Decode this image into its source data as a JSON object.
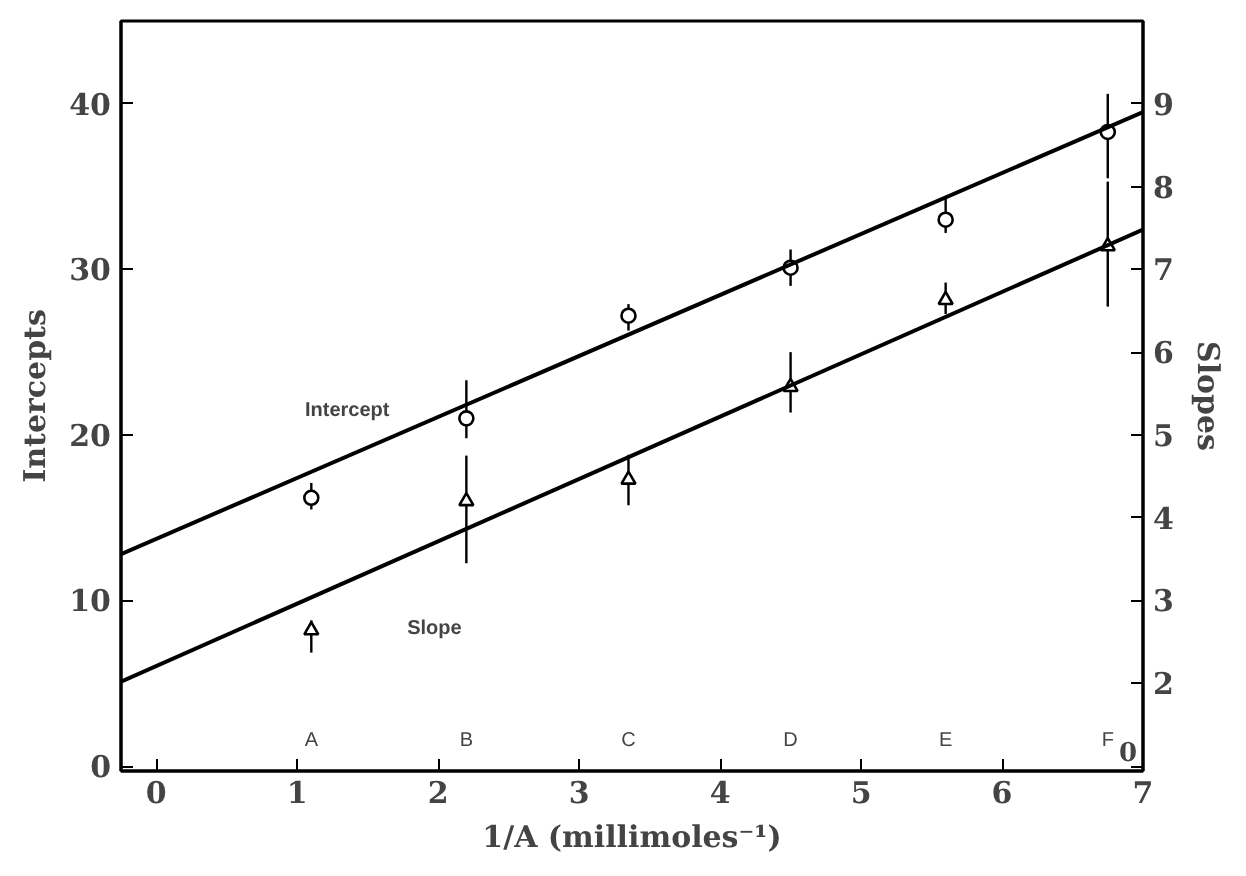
{
  "chart_data": {
    "type": "scatter",
    "xlabel": "1/A (millimoles⁻¹)",
    "ylabel": "Intercepts",
    "y2label": "Slopes",
    "xlim": [
      -0.25,
      7
    ],
    "xticks": [
      0,
      1,
      2,
      3,
      4,
      5,
      6,
      7
    ],
    "ylim": [
      -0.3,
      45
    ],
    "yticks": [
      0,
      10,
      20,
      30,
      40
    ],
    "y2lim": [
      0.94,
      10
    ],
    "y2ticks": [
      {
        "value": 1,
        "label": null
      },
      2,
      3,
      4,
      5,
      6,
      7,
      8,
      9
    ],
    "grid": false,
    "series": [
      {
        "color": "#000000",
        "marker": "circle",
        "x": [
          1.1,
          2.2,
          3.35,
          4.5,
          5.6,
          6.75
        ],
        "values": [
          16.2,
          21.0,
          27.2,
          30.1,
          33.0,
          38.3
        ],
        "errors": [
          [
            15.5,
            17.1
          ],
          [
            19.8,
            23.3
          ],
          [
            26.3,
            27.9
          ],
          [
            29.0,
            31.2
          ],
          [
            32.2,
            34.3
          ],
          [
            35.5,
            40.6
          ]
        ]
      },
      {
        "color": "#000000",
        "marker": "triangle",
        "axis": "y2",
        "x": [
          1.1,
          2.2,
          3.35,
          4.5,
          5.6,
          6.75
        ],
        "values": [
          2.64,
          4.2,
          4.46,
          5.58,
          6.63,
          7.28
        ],
        "errors": [
          [
            2.37,
            2.76
          ],
          [
            3.45,
            4.75
          ],
          [
            4.15,
            4.76
          ],
          [
            5.27,
            6.0
          ],
          [
            6.46,
            6.84
          ],
          [
            6.55,
            8.06
          ]
        ]
      },
      {
        "type": "line",
        "color": "#000000",
        "x": [
          -0.25,
          7
        ],
        "values": [
          12.8,
          39.5
        ]
      },
      {
        "type": "line",
        "color": "#000000",
        "axis": "y2",
        "x": [
          -0.25,
          7
        ],
        "values": [
          2.02,
          7.48
        ]
      }
    ],
    "annotations": [
      "Intercept",
      "Slope",
      "A",
      "B",
      "C",
      "D",
      "E",
      "F",
      "0"
    ]
  }
}
